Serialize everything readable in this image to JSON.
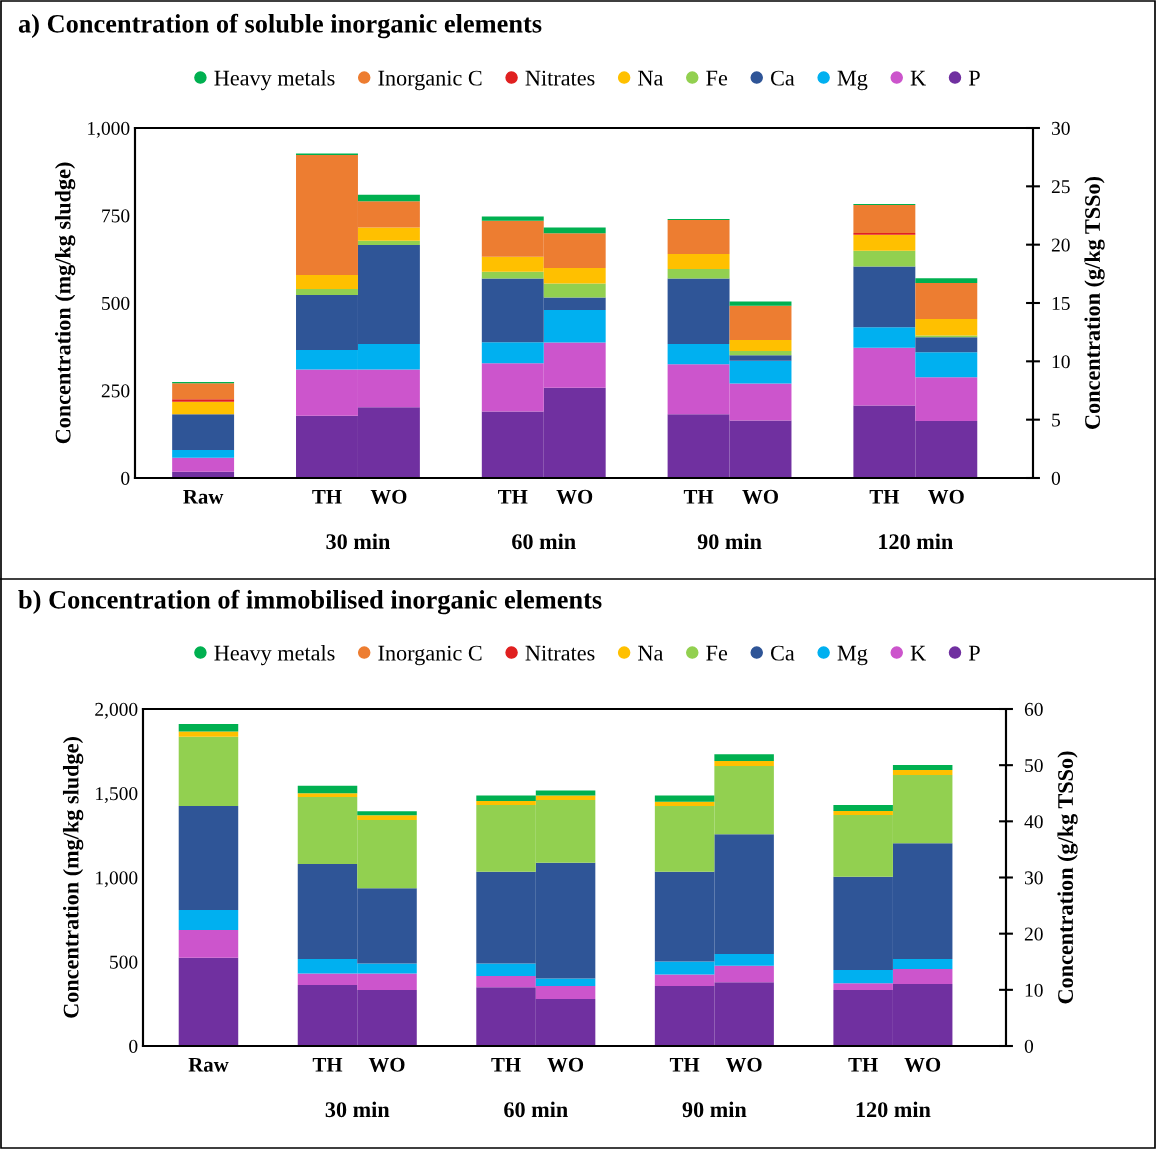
{
  "chart_data": [
    {
      "type": "bar",
      "stacked": true,
      "title": "a) Concentration of soluble inorganic elements",
      "ylabel": "Concentration (mg/kg sludge)",
      "y2label": "Concentration (g/kg TSSo)",
      "legend": "top",
      "categories": [
        "Raw",
        "TH",
        "WO",
        "TH",
        "WO",
        "TH",
        "WO",
        "TH",
        "WO"
      ],
      "annotations": [
        "30 min",
        "60 min",
        "90 min",
        "120 min"
      ],
      "ylim": [
        0,
        1000
      ],
      "yticks": [
        0,
        250,
        500,
        750,
        {
          "value": 1000,
          "label": "1,000"
        }
      ],
      "y2lim": [
        0,
        30
      ],
      "y2ticks": [
        0,
        5,
        10,
        15,
        20,
        25,
        30
      ],
      "series": [
        {
          "name": "P",
          "color": "#7030a0",
          "values": [
            18,
            178,
            202,
            190,
            258,
            182,
            164,
            207,
            163
          ]
        },
        {
          "name": "K",
          "color": "#cc55cc",
          "values": [
            40,
            132,
            108,
            138,
            129,
            143,
            106,
            165,
            125
          ]
        },
        {
          "name": "Mg",
          "color": "#00b0f0",
          "values": [
            22,
            56,
            73,
            60,
            93,
            58,
            65,
            59,
            71
          ]
        },
        {
          "name": "Ca",
          "color": "#2f5597",
          "values": [
            102,
            157,
            283,
            182,
            36,
            187,
            16,
            173,
            43
          ]
        },
        {
          "name": "Fe",
          "color": "#92d050",
          "values": [
            0,
            17,
            12,
            19,
            40,
            27,
            12,
            45,
            5
          ]
        },
        {
          "name": "Na",
          "color": "#ffc000",
          "values": [
            36,
            40,
            38,
            43,
            44,
            43,
            31,
            46,
            47
          ]
        },
        {
          "name": "Nitrates",
          "color": "#e02020",
          "values": [
            7,
            0,
            0,
            0,
            0,
            0,
            0,
            5,
            0
          ]
        },
        {
          "name": "Inorganic C",
          "color": "#ed7d31",
          "values": [
            46,
            343,
            75,
            103,
            99,
            97,
            98,
            80,
            103
          ]
        },
        {
          "name": "Heavy metals",
          "color": "#00b050",
          "values": [
            3,
            4,
            18,
            12,
            17,
            3,
            12,
            3,
            14
          ]
        }
      ]
    },
    {
      "type": "bar",
      "stacked": true,
      "title": "b) Concentration of immobilised inorganic elements",
      "ylabel": "Concentration (mg/kg sludge)",
      "y2label": "Concentration (g/kg TSSo)",
      "legend": "top",
      "categories": [
        "Raw",
        "TH",
        "WO",
        "TH",
        "WO",
        "TH",
        "WO",
        "TH",
        "WO"
      ],
      "annotations": [
        "30 min",
        "60 min",
        "90 min",
        "120 min"
      ],
      "ylim": [
        0,
        2000
      ],
      "yticks": [
        0,
        500,
        {
          "value": 1000,
          "label": "1,000"
        },
        {
          "value": 1500,
          "label": "1,500"
        },
        {
          "value": 2000,
          "label": "2,000"
        }
      ],
      "y2lim": [
        0,
        60
      ],
      "y2ticks": [
        0,
        10,
        20,
        30,
        40,
        50,
        60
      ],
      "series": [
        {
          "name": "P",
          "color": "#7030a0",
          "values": [
            524,
            362,
            332,
            348,
            279,
            356,
            378,
            332,
            368
          ]
        },
        {
          "name": "K",
          "color": "#cc55cc",
          "values": [
            164,
            69,
            99,
            67,
            77,
            69,
            99,
            40,
            89
          ]
        },
        {
          "name": "Mg",
          "color": "#00b0f0",
          "values": [
            119,
            85,
            59,
            75,
            45,
            76,
            69,
            79,
            59
          ]
        },
        {
          "name": "Ca",
          "color": "#2f5597",
          "values": [
            617,
            564,
            446,
            544,
            687,
            533,
            710,
            554,
            687
          ]
        },
        {
          "name": "Fe",
          "color": "#92d050",
          "values": [
            412,
            398,
            405,
            396,
            372,
            390,
            406,
            366,
            405
          ]
        },
        {
          "name": "Na",
          "color": "#ffc000",
          "values": [
            30,
            22,
            28,
            24,
            26,
            26,
            29,
            24,
            30
          ]
        },
        {
          "name": "Nitrates",
          "color": "#e02020",
          "values": [
            0,
            0,
            0,
            0,
            0,
            0,
            0,
            0,
            0
          ]
        },
        {
          "name": "Inorganic C",
          "color": "#ed7d31",
          "values": [
            0,
            0,
            0,
            0,
            0,
            0,
            0,
            0,
            0
          ]
        },
        {
          "name": "Heavy metals",
          "color": "#00b050",
          "values": [
            45,
            45,
            24,
            32,
            31,
            36,
            40,
            35,
            30
          ]
        }
      ]
    }
  ]
}
